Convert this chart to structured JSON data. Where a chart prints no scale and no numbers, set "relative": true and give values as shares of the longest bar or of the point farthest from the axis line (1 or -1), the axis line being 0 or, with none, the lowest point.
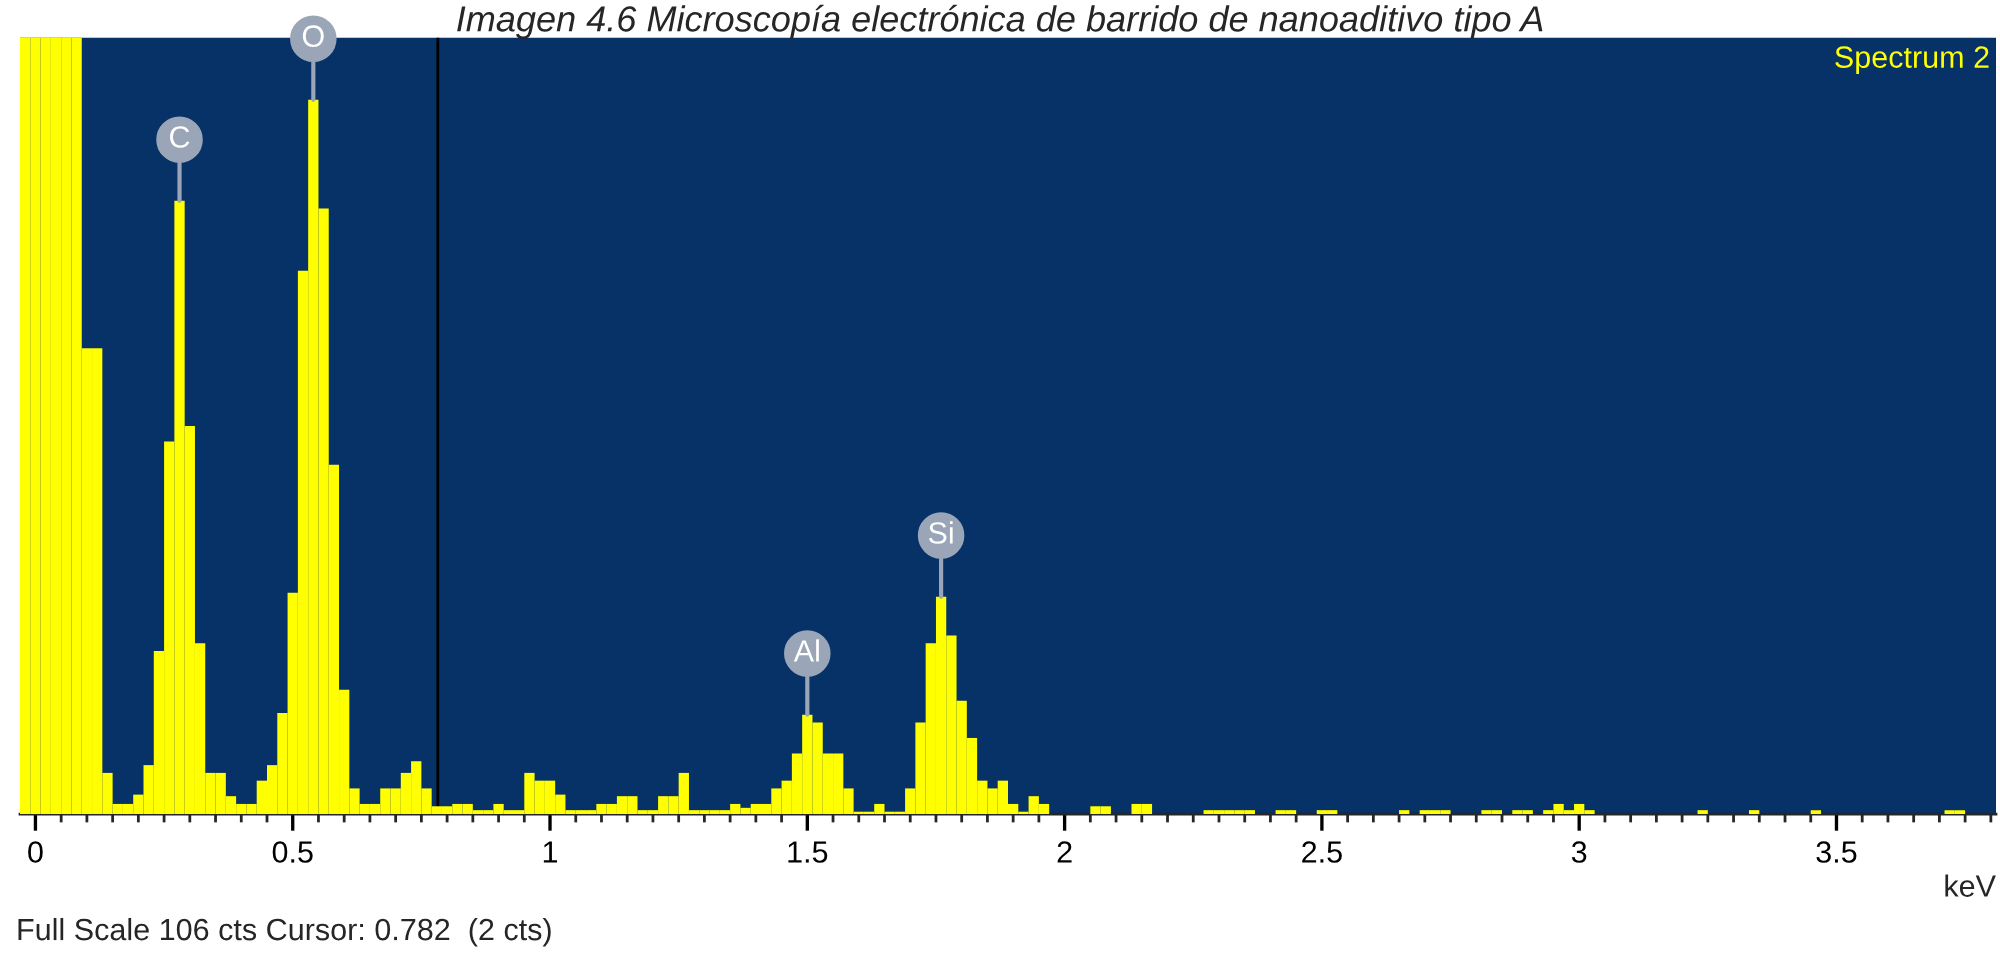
{
  "chart_data": {
    "type": "bar",
    "title": "Imagen 4.6 Microscopía electrónica de barrido de nanoaditivo tipo A",
    "xlabel": "keV",
    "relative": true,
    "color": "#ffff00",
    "x": [
      -0.02,
      0,
      0.02,
      0.04,
      0.06,
      0.08,
      0.1,
      0.12,
      0.14,
      0.16,
      0.18,
      0.2,
      0.22,
      0.24,
      0.26,
      0.28,
      0.3,
      0.32,
      0.34,
      0.36,
      0.38,
      0.4,
      0.42,
      0.44,
      0.46,
      0.48,
      0.5,
      0.52,
      0.54,
      0.56,
      0.58,
      0.6,
      0.62,
      0.64,
      0.66,
      0.68,
      0.7,
      0.72,
      0.74,
      0.76,
      0.78,
      0.8,
      0.82,
      0.84,
      0.86,
      0.88,
      0.9,
      0.92,
      0.94,
      0.96,
      0.98,
      1,
      1.02,
      1.04,
      1.06,
      1.08,
      1.1,
      1.12,
      1.14,
      1.16,
      1.18,
      1.2,
      1.22,
      1.24,
      1.26,
      1.28,
      1.3,
      1.32,
      1.34,
      1.36,
      1.38,
      1.4,
      1.42,
      1.44,
      1.46,
      1.48,
      1.5,
      1.52,
      1.54,
      1.56,
      1.58,
      1.6,
      1.62,
      1.64,
      1.66,
      1.68,
      1.7,
      1.72,
      1.74,
      1.76,
      1.78,
      1.8,
      1.82,
      1.84,
      1.86,
      1.88,
      1.9,
      1.92,
      1.94,
      1.96,
      1.98,
      2,
      2.02,
      2.04,
      2.06,
      2.08,
      2.1,
      2.12,
      2.14,
      2.16,
      2.18,
      2.2,
      2.22,
      2.24,
      2.26,
      2.28,
      2.3,
      2.32,
      2.34,
      2.36,
      2.38,
      2.4,
      2.42,
      2.44,
      2.46,
      2.48,
      2.5,
      2.52,
      2.54,
      2.56,
      2.58,
      2.6,
      2.62,
      2.64,
      2.66,
      2.68,
      2.7,
      2.72,
      2.74,
      2.76,
      2.78,
      2.8,
      2.82,
      2.84,
      2.86,
      2.88,
      2.9,
      2.92,
      2.94,
      2.96,
      2.98,
      3,
      3.02,
      3.04,
      3.06,
      3.08,
      3.1,
      3.12,
      3.14,
      3.16,
      3.18,
      3.2,
      3.22,
      3.24,
      3.26,
      3.28,
      3.3,
      3.32,
      3.34,
      3.36,
      3.38,
      3.4,
      3.42,
      3.44,
      3.46,
      3.48,
      3.5,
      3.52,
      3.54,
      3.56,
      3.58,
      3.6,
      3.62,
      3.64,
      3.66,
      3.68,
      3.7,
      3.72,
      3.74,
      3.76,
      3.78,
      3.8
    ],
    "values": [
      1,
      1,
      1,
      1,
      1,
      1,
      0.6,
      0.6,
      0.053,
      0.013,
      0.013,
      0.025,
      0.063,
      0.21,
      0.48,
      0.79,
      0.5,
      0.22,
      0.053,
      0.053,
      0.023,
      0.013,
      0.013,
      0.043,
      0.063,
      0.13,
      0.285,
      0.7,
      0.92,
      0.78,
      0.45,
      0.16,
      0.033,
      0.013,
      0.013,
      0.033,
      0.033,
      0.053,
      0.068,
      0.033,
      0.01,
      0.01,
      0.013,
      0.013,
      0.005,
      0.005,
      0.013,
      0.005,
      0.005,
      0.053,
      0.043,
      0.043,
      0.025,
      0.005,
      0.005,
      0.005,
      0.013,
      0.013,
      0.023,
      0.023,
      0.005,
      0.005,
      0.023,
      0.023,
      0.053,
      0.005,
      0.005,
      0.005,
      0.005,
      0.013,
      0.008,
      0.013,
      0.013,
      0.033,
      0.043,
      0.078,
      0.128,
      0.118,
      0.078,
      0.078,
      0.033,
      0.003,
      0.003,
      0.013,
      0.003,
      0.003,
      0.033,
      0.118,
      0.22,
      0.28,
      0.23,
      0.146,
      0.098,
      0.043,
      0.033,
      0.043,
      0.013,
      0.003,
      0.023,
      0.013,
      0,
      0,
      0,
      0,
      0.01,
      0.01,
      0,
      0,
      0.013,
      0.013,
      0,
      0,
      0,
      0,
      0,
      0.005,
      0.005,
      0.005,
      0.005,
      0.005,
      0,
      0,
      0.005,
      0.005,
      0,
      0,
      0.005,
      0.005,
      0,
      0,
      0,
      0,
      0,
      0,
      0.005,
      0,
      0.005,
      0.005,
      0.005,
      0,
      0,
      0,
      0.005,
      0.005,
      0,
      0.005,
      0.005,
      0,
      0.005,
      0.013,
      0.005,
      0.013,
      0.005,
      0,
      0,
      0,
      0,
      0,
      0,
      0,
      0,
      0,
      0,
      0.005,
      0,
      0,
      0,
      0,
      0.005,
      0,
      0,
      0,
      0,
      0,
      0.005,
      0,
      0,
      0,
      0,
      0,
      0,
      0,
      0,
      0,
      0,
      0,
      0,
      0.005,
      0.005,
      0,
      0,
      0
    ],
    "xlim": [
      -0.03,
      3.81
    ],
    "xticks": [
      0,
      0.5,
      1,
      1.5,
      2,
      2.5,
      3,
      3.5
    ],
    "ref_lines": [
      {
        "axis": "x",
        "value": 0.782,
        "color": "#000000"
      }
    ],
    "annotations": [
      "Spectrum 2",
      "Full Scale 106 cts Cursor: 0.782  (2 cts)",
      {
        "text": "C",
        "x": 0.28,
        "y": 0.79
      },
      {
        "text": "O",
        "x": 0.54,
        "y": 0.92
      },
      {
        "text": "Al",
        "x": 1.5,
        "y": 0.128
      },
      {
        "text": "Si",
        "x": 1.76,
        "y": 0.28
      }
    ],
    "grid": false
  }
}
